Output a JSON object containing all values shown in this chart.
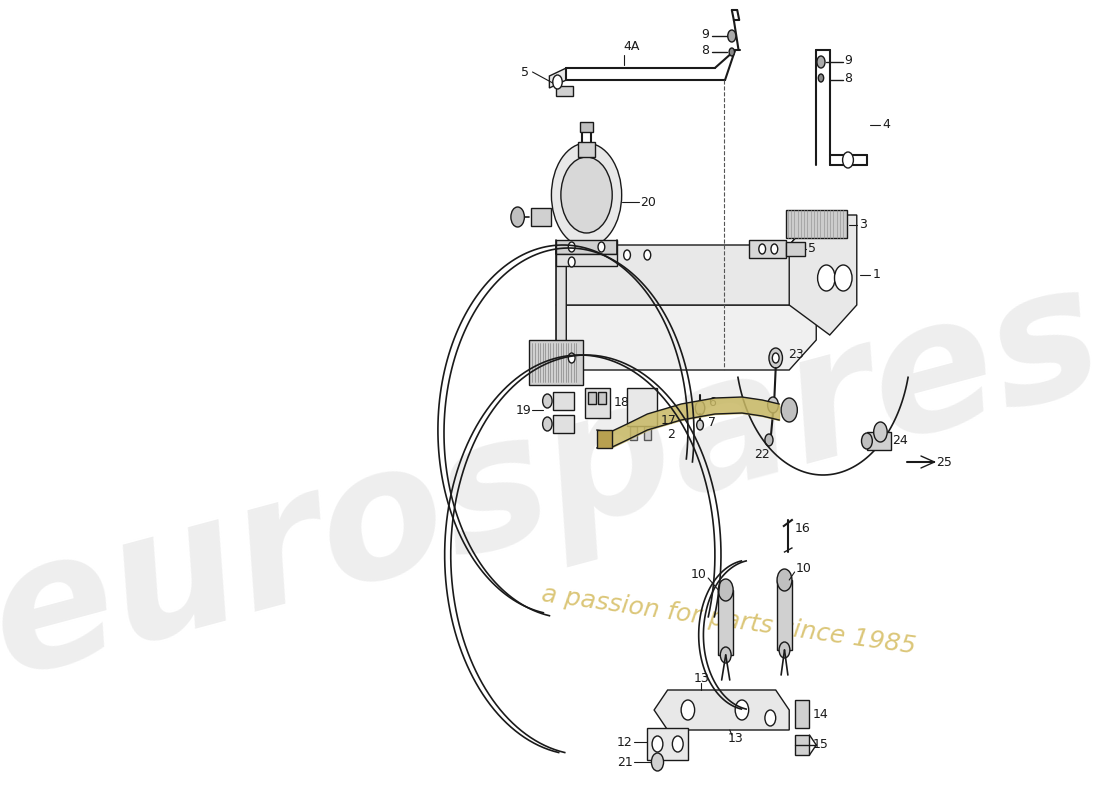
{
  "bg_color": "#ffffff",
  "lc": "#1a1a1a",
  "lw": 1.0,
  "wm1": "eurospares",
  "wm2": "a passion for parts since 1985",
  "wm1_color": "#d0d0d0",
  "wm2_color": "#c8a830",
  "fig_w": 11.0,
  "fig_h": 8.0,
  "dpi": 100
}
